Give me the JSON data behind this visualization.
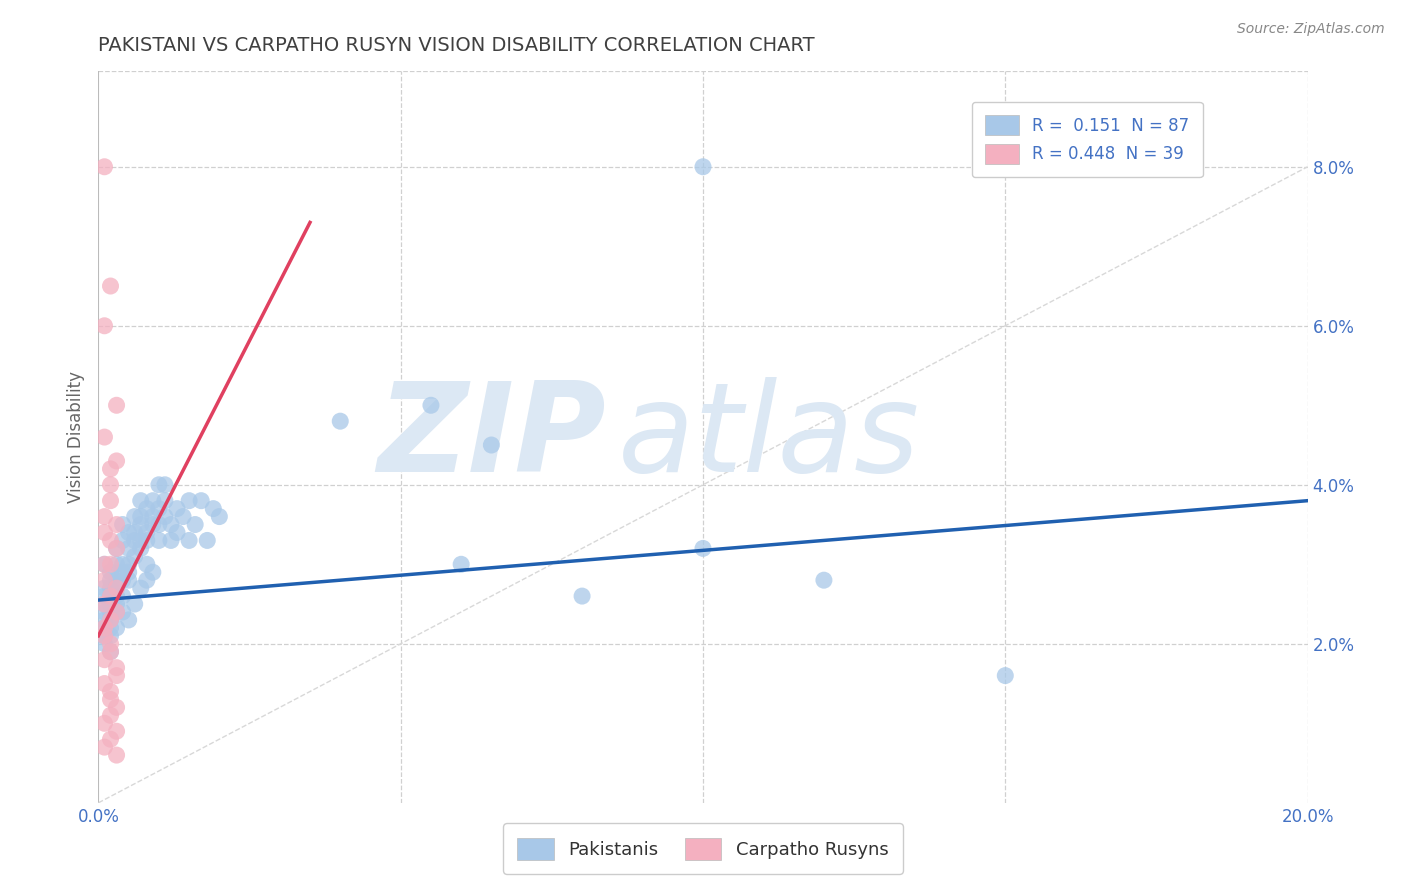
{
  "title": "PAKISTANI VS CARPATHO RUSYN VISION DISABILITY CORRELATION CHART",
  "source": "Source: ZipAtlas.com",
  "ylabel": "Vision Disability",
  "xlim": [
    0.0,
    0.2
  ],
  "ylim": [
    0.0,
    0.092
  ],
  "yticks_right": [
    0.02,
    0.04,
    0.06,
    0.08
  ],
  "ytick_labels_right": [
    "2.0%",
    "4.0%",
    "6.0%",
    "8.0%"
  ],
  "blue_R": 0.151,
  "blue_N": 87,
  "pink_R": 0.448,
  "pink_N": 39,
  "blue_color": "#a8c8e8",
  "pink_color": "#f4b0c0",
  "blue_line_color": "#2060b0",
  "pink_line_color": "#e04060",
  "ref_line_color": "#d8d8d8",
  "watermark_zip": "ZIP",
  "watermark_atlas": "atlas",
  "watermark_color": "#dce8f4",
  "background_color": "#ffffff",
  "grid_color": "#d0d0d0",
  "title_color": "#404040",
  "blue_trend_x": [
    0.0,
    0.2
  ],
  "blue_trend_y": [
    0.0255,
    0.038
  ],
  "pink_trend_x": [
    0.0,
    0.035
  ],
  "pink_trend_y": [
    0.021,
    0.073
  ],
  "blue_scatter": [
    [
      0.001,
      0.027
    ],
    [
      0.001,
      0.025
    ],
    [
      0.001,
      0.03
    ],
    [
      0.001,
      0.026
    ],
    [
      0.001,
      0.023
    ],
    [
      0.001,
      0.024
    ],
    [
      0.001,
      0.022
    ],
    [
      0.002,
      0.028
    ],
    [
      0.002,
      0.026
    ],
    [
      0.002,
      0.024
    ],
    [
      0.002,
      0.025
    ],
    [
      0.002,
      0.029
    ],
    [
      0.002,
      0.023
    ],
    [
      0.002,
      0.027
    ],
    [
      0.002,
      0.022
    ],
    [
      0.003,
      0.03
    ],
    [
      0.003,
      0.028
    ],
    [
      0.003,
      0.026
    ],
    [
      0.003,
      0.032
    ],
    [
      0.003,
      0.025
    ],
    [
      0.003,
      0.024
    ],
    [
      0.003,
      0.027
    ],
    [
      0.004,
      0.033
    ],
    [
      0.004,
      0.03
    ],
    [
      0.004,
      0.028
    ],
    [
      0.004,
      0.029
    ],
    [
      0.004,
      0.026
    ],
    [
      0.004,
      0.035
    ],
    [
      0.005,
      0.034
    ],
    [
      0.005,
      0.032
    ],
    [
      0.005,
      0.03
    ],
    [
      0.005,
      0.028
    ],
    [
      0.005,
      0.029
    ],
    [
      0.006,
      0.036
    ],
    [
      0.006,
      0.033
    ],
    [
      0.006,
      0.031
    ],
    [
      0.006,
      0.034
    ],
    [
      0.007,
      0.038
    ],
    [
      0.007,
      0.035
    ],
    [
      0.007,
      0.033
    ],
    [
      0.007,
      0.032
    ],
    [
      0.007,
      0.036
    ],
    [
      0.008,
      0.037
    ],
    [
      0.008,
      0.034
    ],
    [
      0.008,
      0.03
    ],
    [
      0.008,
      0.033
    ],
    [
      0.009,
      0.036
    ],
    [
      0.009,
      0.038
    ],
    [
      0.009,
      0.035
    ],
    [
      0.01,
      0.04
    ],
    [
      0.01,
      0.037
    ],
    [
      0.01,
      0.033
    ],
    [
      0.01,
      0.035
    ],
    [
      0.011,
      0.038
    ],
    [
      0.011,
      0.036
    ],
    [
      0.011,
      0.04
    ],
    [
      0.012,
      0.035
    ],
    [
      0.012,
      0.033
    ],
    [
      0.013,
      0.037
    ],
    [
      0.013,
      0.034
    ],
    [
      0.014,
      0.036
    ],
    [
      0.015,
      0.038
    ],
    [
      0.015,
      0.033
    ],
    [
      0.016,
      0.035
    ],
    [
      0.017,
      0.038
    ],
    [
      0.018,
      0.033
    ],
    [
      0.019,
      0.037
    ],
    [
      0.001,
      0.021
    ],
    [
      0.001,
      0.02
    ],
    [
      0.002,
      0.019
    ],
    [
      0.002,
      0.021
    ],
    [
      0.003,
      0.022
    ],
    [
      0.004,
      0.024
    ],
    [
      0.005,
      0.023
    ],
    [
      0.006,
      0.025
    ],
    [
      0.007,
      0.027
    ],
    [
      0.008,
      0.028
    ],
    [
      0.009,
      0.029
    ],
    [
      0.02,
      0.036
    ],
    [
      0.06,
      0.03
    ],
    [
      0.08,
      0.026
    ],
    [
      0.1,
      0.032
    ],
    [
      0.1,
      0.08
    ],
    [
      0.12,
      0.028
    ],
    [
      0.15,
      0.016
    ],
    [
      0.055,
      0.05
    ],
    [
      0.065,
      0.045
    ],
    [
      0.04,
      0.048
    ]
  ],
  "pink_scatter": [
    [
      0.001,
      0.08
    ],
    [
      0.002,
      0.065
    ],
    [
      0.001,
      0.06
    ],
    [
      0.003,
      0.05
    ],
    [
      0.001,
      0.046
    ],
    [
      0.002,
      0.042
    ],
    [
      0.003,
      0.043
    ],
    [
      0.002,
      0.038
    ],
    [
      0.001,
      0.036
    ],
    [
      0.002,
      0.04
    ],
    [
      0.003,
      0.035
    ],
    [
      0.002,
      0.03
    ],
    [
      0.001,
      0.028
    ],
    [
      0.002,
      0.026
    ],
    [
      0.003,
      0.024
    ],
    [
      0.001,
      0.022
    ],
    [
      0.002,
      0.02
    ],
    [
      0.001,
      0.018
    ],
    [
      0.003,
      0.016
    ],
    [
      0.002,
      0.014
    ],
    [
      0.001,
      0.025
    ],
    [
      0.003,
      0.027
    ],
    [
      0.002,
      0.023
    ],
    [
      0.001,
      0.021
    ],
    [
      0.002,
      0.019
    ],
    [
      0.003,
      0.017
    ],
    [
      0.001,
      0.015
    ],
    [
      0.002,
      0.013
    ],
    [
      0.003,
      0.012
    ],
    [
      0.001,
      0.01
    ],
    [
      0.002,
      0.008
    ],
    [
      0.001,
      0.007
    ],
    [
      0.003,
      0.009
    ],
    [
      0.001,
      0.03
    ],
    [
      0.003,
      0.032
    ],
    [
      0.002,
      0.011
    ],
    [
      0.001,
      0.034
    ],
    [
      0.002,
      0.033
    ],
    [
      0.003,
      0.006
    ]
  ]
}
